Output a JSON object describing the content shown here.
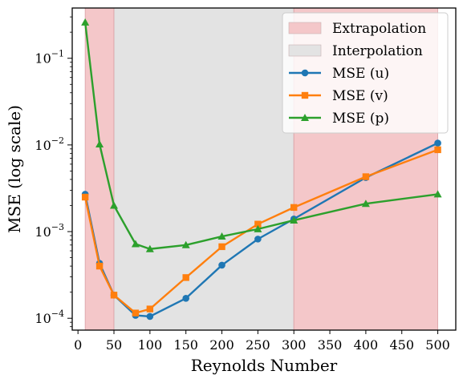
{
  "chart_data": {
    "type": "line",
    "xlabel": "Reynolds Number",
    "ylabel": "MSE (log scale)",
    "yscale": "log",
    "xlim": [
      -8,
      525
    ],
    "ylim": [
      7.3e-05,
      0.38
    ],
    "xticks": [
      0,
      50,
      100,
      150,
      200,
      250,
      300,
      350,
      400,
      450,
      500
    ],
    "yticks": [
      0.0001,
      0.001,
      0.01,
      0.1
    ],
    "ytick_labels": [
      {
        "base": "10",
        "exp": "−4"
      },
      {
        "base": "10",
        "exp": "−3"
      },
      {
        "base": "10",
        "exp": "−2"
      },
      {
        "base": "10",
        "exp": "−1"
      }
    ],
    "regions": [
      {
        "label": "Extrapolation",
        "from": 10,
        "to": 50,
        "color": "#f4c7c9"
      },
      {
        "label": "Interpolation",
        "from": 50,
        "to": 300,
        "color": "#e3e3e3"
      },
      {
        "label": "Extrapolation",
        "from": 300,
        "to": 500,
        "color": "#f4c7c9"
      }
    ],
    "x": [
      10,
      30,
      50,
      80,
      100,
      150,
      200,
      250,
      300,
      400,
      500
    ],
    "series": [
      {
        "name": "MSE (u)",
        "color": "#1f77b4",
        "marker": "circle",
        "values": [
          0.0027,
          0.00043,
          0.000185,
          0.000108,
          0.000105,
          0.00017,
          0.00041,
          0.00082,
          0.0014,
          0.0042,
          0.0105
        ]
      },
      {
        "name": "MSE (v)",
        "color": "#ff7f0e",
        "marker": "square",
        "values": [
          0.0025,
          0.0004,
          0.000185,
          0.000115,
          0.000128,
          0.000295,
          0.00067,
          0.00122,
          0.0019,
          0.0043,
          0.0088
        ]
      },
      {
        "name": "MSE (p)",
        "color": "#2ca02c",
        "marker": "triangle",
        "values": [
          0.26,
          0.0102,
          0.002,
          0.00072,
          0.00063,
          0.0007,
          0.00088,
          0.00107,
          0.00135,
          0.0021,
          0.0027
        ]
      }
    ],
    "grid": false,
    "legend": {
      "placement": "top-right",
      "entries": [
        {
          "label": "Extrapolation",
          "kind": "patch",
          "color": "#f4c7c9"
        },
        {
          "label": "Interpolation",
          "kind": "patch",
          "color": "#e3e3e3"
        },
        {
          "label": "MSE (u)",
          "kind": "line",
          "color": "#1f77b4",
          "marker": "circle"
        },
        {
          "label": "MSE (v)",
          "kind": "line",
          "color": "#ff7f0e",
          "marker": "square"
        },
        {
          "label": "MSE (p)",
          "kind": "line",
          "color": "#2ca02c",
          "marker": "triangle"
        }
      ]
    }
  }
}
